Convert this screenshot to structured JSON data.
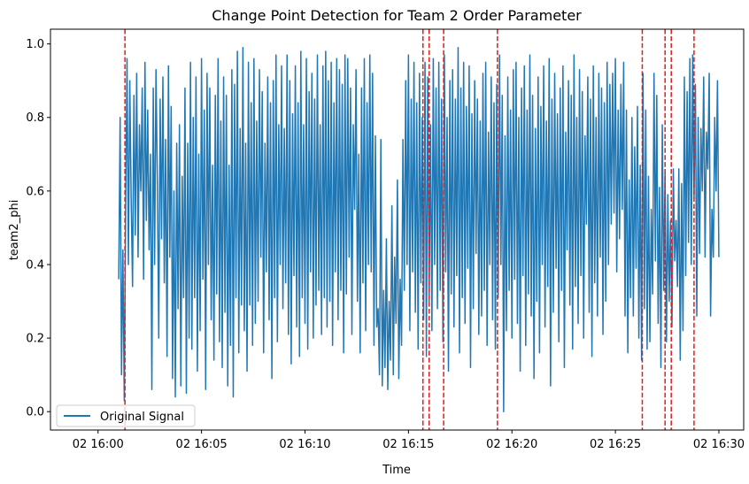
{
  "chart_data": {
    "type": "line",
    "title": "Change Point Detection for Team 2 Order Parameter",
    "xlabel": "Time",
    "ylabel": "team2_phi",
    "x_start": "02 16:01",
    "x_end": "02 16:30",
    "x_ticks": [
      {
        "t": 0,
        "label": "02 16:00"
      },
      {
        "t": 5,
        "label": "02 16:05"
      },
      {
        "t": 10,
        "label": "02 16:10"
      },
      {
        "t": 15,
        "label": "02 16:15"
      },
      {
        "t": 20,
        "label": "02 16:20"
      },
      {
        "t": 25,
        "label": "02 16:25"
      },
      {
        "t": 30,
        "label": "02 16:30"
      }
    ],
    "y_ticks": [
      0.0,
      0.2,
      0.4,
      0.6,
      0.8,
      1.0
    ],
    "y_tick_labels": [
      "0.0",
      "0.2",
      "0.4",
      "0.6",
      "0.8",
      "1.0"
    ],
    "ylim": [
      -0.05,
      1.04
    ],
    "xlim_minutes": [
      -2.3,
      31.2
    ],
    "grid": false,
    "legend": {
      "position": "lower-left",
      "entries": [
        "Original Signal"
      ]
    },
    "series": [
      {
        "name": "Original Signal",
        "color": "#1f77b4",
        "x_start_minutes": 1.0,
        "x_end_minutes": 30.0,
        "values": [
          0.36,
          0.8,
          0.1,
          0.44,
          0.03,
          0.55,
          0.96,
          0.4,
          0.9,
          0.58,
          0.34,
          0.86,
          0.48,
          0.92,
          0.42,
          0.78,
          0.6,
          0.88,
          0.36,
          0.95,
          0.52,
          0.82,
          0.44,
          0.7,
          0.06,
          0.88,
          0.4,
          0.93,
          0.62,
          0.2,
          0.85,
          0.47,
          0.91,
          0.35,
          0.74,
          0.15,
          0.94,
          0.42,
          0.83,
          0.09,
          0.6,
          0.04,
          0.73,
          0.28,
          0.78,
          0.07,
          0.64,
          0.31,
          0.88,
          0.05,
          0.73,
          0.2,
          0.95,
          0.17,
          0.8,
          0.31,
          0.91,
          0.11,
          0.7,
          0.22,
          0.96,
          0.36,
          0.82,
          0.06,
          0.92,
          0.4,
          0.88,
          0.25,
          0.67,
          0.14,
          0.86,
          0.32,
          0.96,
          0.19,
          0.79,
          0.12,
          0.91,
          0.27,
          0.86,
          0.07,
          0.67,
          0.18,
          0.93,
          0.04,
          0.89,
          0.31,
          0.98,
          0.16,
          0.77,
          0.29,
          0.99,
          0.22,
          0.73,
          0.11,
          0.95,
          0.29,
          0.84,
          0.18,
          0.96,
          0.24,
          0.79,
          0.3,
          0.93,
          0.42,
          0.87,
          0.16,
          0.73,
          0.38,
          0.91,
          0.25,
          0.84,
          0.09,
          0.9,
          0.31,
          0.97,
          0.19,
          0.78,
          0.4,
          0.94,
          0.28,
          0.77,
          0.35,
          0.97,
          0.21,
          0.9,
          0.13,
          0.81,
          0.37,
          0.94,
          0.23,
          0.84,
          0.15,
          0.98,
          0.31,
          0.78,
          0.24,
          0.96,
          0.17,
          0.87,
          0.38,
          0.92,
          0.2,
          0.85,
          0.29,
          0.97,
          0.33,
          0.78,
          0.21,
          0.94,
          0.31,
          0.98,
          0.23,
          0.9,
          0.3,
          0.95,
          0.18,
          0.84,
          0.38,
          0.96,
          0.25,
          0.93,
          0.33,
          0.89,
          0.16,
          0.97,
          0.32,
          0.96,
          0.42,
          0.88,
          0.21,
          0.78,
          0.55,
          0.93,
          0.3,
          0.7,
          0.16,
          0.88,
          0.35,
          0.96,
          0.22,
          0.84,
          0.4,
          0.97,
          0.38,
          0.92,
          0.18,
          0.75,
          0.23,
          0.28,
          0.1,
          0.74,
          0.07,
          0.33,
          0.12,
          0.47,
          0.06,
          0.3,
          0.14,
          0.56,
          0.1,
          0.42,
          0.24,
          0.63,
          0.09,
          0.36,
          0.18,
          0.74,
          0.33,
          0.9,
          0.4,
          0.97,
          0.22,
          0.85,
          0.38,
          0.95,
          0.27,
          0.84,
          0.17,
          0.92,
          0.35,
          0.8,
          0.25,
          0.95,
          0.15,
          0.91,
          0.3,
          0.78,
          0.22,
          0.96,
          0.4,
          0.88,
          0.28,
          0.95,
          0.33,
          0.85,
          0.19,
          0.97,
          0.38,
          0.8,
          0.11,
          0.9,
          0.32,
          0.93,
          0.23,
          0.85,
          0.37,
          0.99,
          0.16,
          0.88,
          0.31,
          0.95,
          0.24,
          0.83,
          0.39,
          0.94,
          0.12,
          0.81,
          0.28,
          0.9,
          0.43,
          0.85,
          0.21,
          0.79,
          0.26,
          0.92,
          0.33,
          0.95,
          0.18,
          0.76,
          0.4,
          0.91,
          0.25,
          0.84,
          0.17,
          0.89,
          0.31,
          0.97,
          0.4,
          0.86,
          0.0,
          0.75,
          0.22,
          0.91,
          0.33,
          0.82,
          0.2,
          0.93,
          0.36,
          0.95,
          0.24,
          0.8,
          0.11,
          0.88,
          0.37,
          0.94,
          0.18,
          0.82,
          0.32,
          0.97,
          0.26,
          0.86,
          0.09,
          0.77,
          0.3,
          0.91,
          0.16,
          0.83,
          0.4,
          0.94,
          0.23,
          0.79,
          0.34,
          0.96,
          0.07,
          0.85,
          0.27,
          0.92,
          0.39,
          0.81,
          0.19,
          0.88,
          0.33,
          0.94,
          0.12,
          0.76,
          0.44,
          0.9,
          0.29,
          0.86,
          0.17,
          0.97,
          0.34,
          0.8,
          0.24,
          0.93,
          0.37,
          0.87,
          0.2,
          0.75,
          0.51,
          0.91,
          0.27,
          0.85,
          0.15,
          0.94,
          0.35,
          0.8,
          0.26,
          0.92,
          0.42,
          0.88,
          0.21,
          0.84,
          0.3,
          0.95,
          0.4,
          0.89,
          0.51,
          0.92,
          0.54,
          0.96,
          0.38,
          0.82,
          0.47,
          0.89,
          0.55,
          0.95,
          0.26,
          0.82,
          0.16,
          0.63,
          0.31,
          0.8,
          0.26,
          0.72,
          0.39,
          0.83,
          0.2,
          0.67,
          0.14,
          0.92,
          0.28,
          0.82,
          0.17,
          0.64,
          0.19,
          0.55,
          0.32,
          0.92,
          0.41,
          0.86,
          0.24,
          0.61,
          0.12,
          0.78,
          0.33,
          0.65,
          0.19,
          0.59,
          0.3,
          0.52,
          0.23,
          0.66,
          0.41,
          0.52,
          0.34,
          0.66,
          0.14,
          0.62,
          0.22,
          0.91,
          0.37,
          0.87,
          0.46,
          0.96,
          0.4,
          0.97,
          0.58,
          0.89,
          0.26,
          0.8,
          0.43,
          0.77,
          0.6,
          0.91,
          0.42,
          0.76,
          0.66,
          0.92,
          0.26,
          0.55,
          0.42,
          0.8,
          0.6,
          0.9,
          0.42
        ]
      }
    ],
    "change_points_minutes": [
      1.3,
      15.7,
      16.0,
      16.7,
      19.3,
      26.3,
      27.4,
      27.7,
      28.8
    ],
    "change_point_color": "#e41a1c"
  }
}
